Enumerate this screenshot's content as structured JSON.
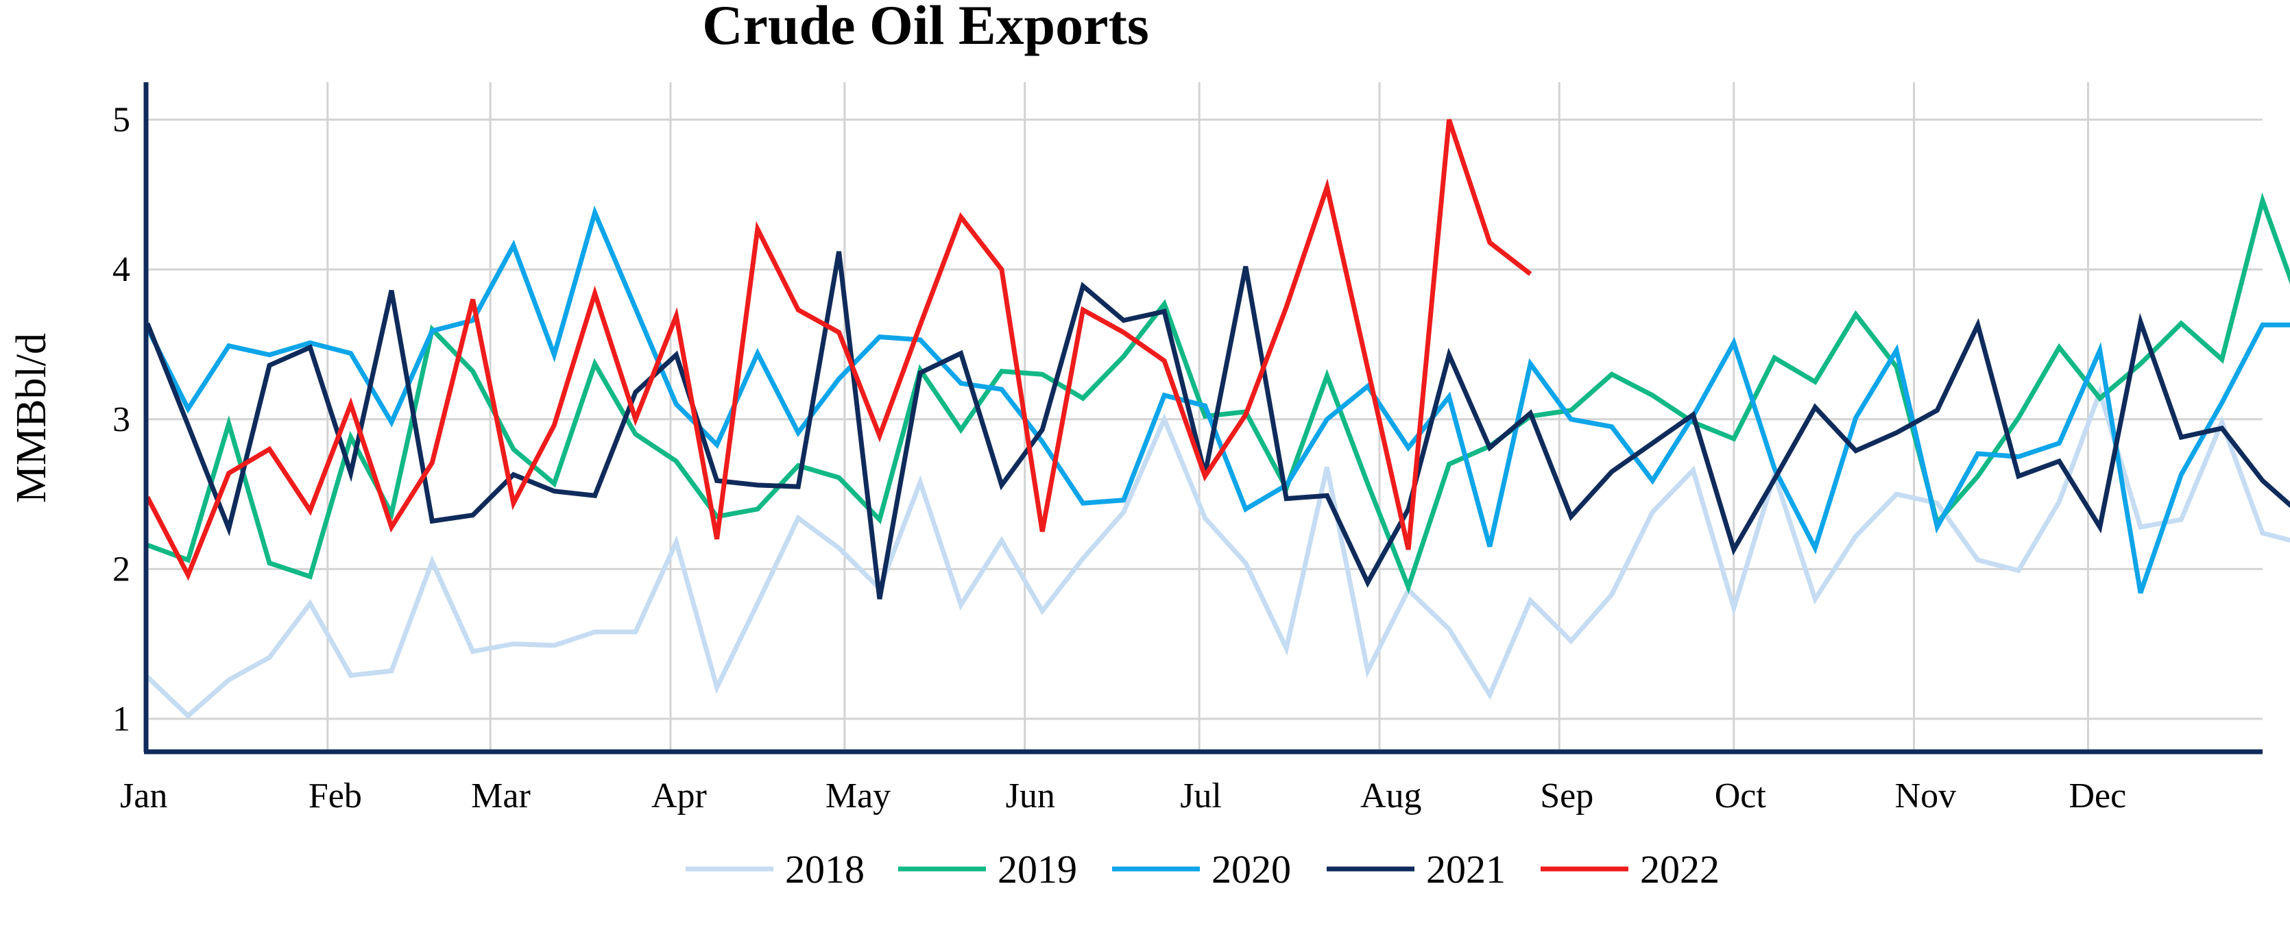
{
  "chart_data": {
    "type": "line",
    "title": "Crude Oil Exports",
    "ylabel": "MMBbl/d",
    "xlabel": "",
    "ylim": [
      0.78,
      5.25
    ],
    "yticks": [
      1,
      2,
      3,
      4,
      5
    ],
    "x_range": [
      0,
      52
    ],
    "months": [
      "Jan",
      "Feb",
      "Mar",
      "Apr",
      "May",
      "Jun",
      "Jul",
      "Aug",
      "Sep",
      "Oct",
      "Nov",
      "Dec"
    ],
    "month_weeks": [
      0,
      4.43,
      8.43,
      12.86,
      17.14,
      21.57,
      25.86,
      30.29,
      34.71,
      39,
      43.43,
      47.71
    ],
    "grid": true,
    "legend_position": "bottom",
    "series": [
      {
        "name": "2018",
        "color": "#c5dcf2",
        "values": [
          1.28,
          1.02,
          1.26,
          1.41,
          1.77,
          1.29,
          1.32,
          2.05,
          1.45,
          1.5,
          1.49,
          1.58,
          1.58,
          2.18,
          1.21,
          1.77,
          2.34,
          2.14,
          1.87,
          2.58,
          1.76,
          2.19,
          1.72,
          2.07,
          2.38,
          3.0,
          2.34,
          2.04,
          1.47,
          2.68,
          1.32,
          1.86,
          1.6,
          1.16,
          1.79,
          1.52,
          1.83,
          2.38,
          2.66,
          1.74,
          2.63,
          1.8,
          2.22,
          2.5,
          2.44,
          2.06,
          1.99,
          2.45,
          3.18,
          2.28,
          2.33,
          2.98,
          2.24,
          2.17
        ]
      },
      {
        "name": "2019",
        "color": "#12b886",
        "values": [
          2.16,
          2.06,
          2.97,
          2.04,
          1.95,
          2.88,
          2.37,
          3.6,
          3.32,
          2.8,
          2.57,
          3.37,
          2.9,
          2.72,
          2.35,
          2.4,
          2.69,
          2.61,
          2.33,
          3.33,
          2.93,
          3.32,
          3.3,
          3.14,
          3.42,
          3.77,
          3.02,
          3.05,
          2.54,
          3.29,
          2.57,
          1.88,
          2.7,
          2.82,
          3.02,
          3.06,
          3.3,
          3.16,
          2.98,
          2.87,
          3.41,
          3.25,
          3.7,
          3.35,
          2.31,
          2.62,
          3.01,
          3.48,
          3.14,
          3.37,
          3.64,
          3.4,
          4.46,
          3.7
        ]
      },
      {
        "name": "2020",
        "color": "#0ea5e9",
        "values": [
          3.61,
          3.07,
          3.49,
          3.43,
          3.51,
          3.44,
          2.98,
          3.59,
          3.66,
          4.16,
          3.43,
          4.38,
          3.74,
          3.1,
          2.83,
          3.44,
          2.91,
          3.27,
          3.55,
          3.53,
          3.24,
          3.2,
          2.85,
          2.44,
          2.46,
          3.16,
          3.09,
          2.4,
          2.56,
          3.0,
          3.22,
          2.81,
          3.15,
          2.15,
          3.37,
          3.0,
          2.95,
          2.59,
          3.02,
          3.51,
          2.67,
          2.14,
          3.01,
          3.46,
          2.28,
          2.77,
          2.75,
          2.84,
          3.46,
          1.84,
          2.63,
          3.11,
          3.63,
          3.63
        ]
      },
      {
        "name": "2021",
        "color": "#0f2b5b",
        "values": [
          3.64,
          2.96,
          2.27,
          3.36,
          3.48,
          2.64,
          3.86,
          2.32,
          2.36,
          2.63,
          2.52,
          2.49,
          3.18,
          3.43,
          2.59,
          2.56,
          2.55,
          4.12,
          1.8,
          3.31,
          3.44,
          2.56,
          2.93,
          3.89,
          3.66,
          3.72,
          2.63,
          4.02,
          2.47,
          2.49,
          1.91,
          2.4,
          3.43,
          2.81,
          3.04,
          2.35,
          2.65,
          2.84,
          3.03,
          2.13,
          2.6,
          3.08,
          2.79,
          2.91,
          3.06,
          3.63,
          2.62,
          2.72,
          2.28,
          3.65,
          2.88,
          2.94,
          2.59,
          2.35
        ]
      },
      {
        "name": "2022",
        "color": "#ef1c1c",
        "values": [
          2.48,
          1.96,
          2.64,
          2.8,
          2.39,
          3.1,
          2.28,
          2.71,
          3.8,
          2.44,
          2.96,
          3.84,
          3.0,
          3.69,
          2.2,
          4.27,
          3.73,
          3.58,
          2.89,
          3.63,
          4.35,
          4.0,
          2.25,
          3.73,
          3.58,
          3.39,
          2.62,
          3.03,
          3.75,
          4.55,
          3.34,
          2.13,
          5.0,
          4.18,
          3.97
        ]
      }
    ]
  }
}
